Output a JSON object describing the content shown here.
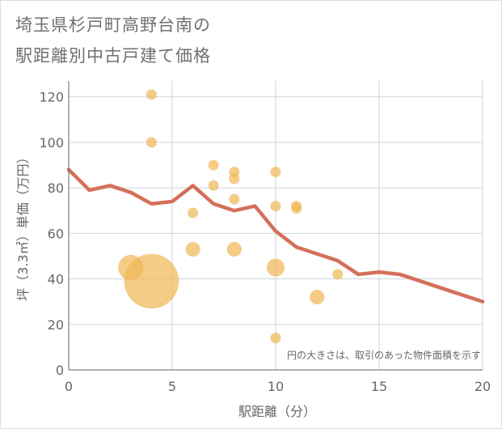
{
  "title_lines": [
    "埼玉県杉戸町高野台南の",
    "駅距離別中古戸建て価格"
  ],
  "chart_data": {
    "type": "scatter",
    "title": "埼玉県杉戸町高野台南の駅距離別中古戸建て価格",
    "xlabel": "駅距離（分）",
    "ylabel": "坪（3.3㎡）単価（万円）",
    "xlim": [
      0,
      20
    ],
    "ylim": [
      0,
      127
    ],
    "x_ticks": [
      0,
      5,
      10,
      15,
      20
    ],
    "y_ticks": [
      0,
      20,
      40,
      60,
      80,
      100,
      120
    ],
    "grid": true,
    "note": "円の大きさは、取引のあった物件面積を示す",
    "colors": {
      "bubble": "#f0b858",
      "line": "#d4705a",
      "grid": "#ccd6dd",
      "axis": "#666666"
    },
    "bubbles": [
      {
        "x": 3,
        "y": 45,
        "size": 2.4
      },
      {
        "x": 4,
        "y": 121,
        "size": 1
      },
      {
        "x": 4,
        "y": 100,
        "size": 1
      },
      {
        "x": 4,
        "y": 39,
        "size": 5.2
      },
      {
        "x": 6,
        "y": 69,
        "size": 1
      },
      {
        "x": 6,
        "y": 53,
        "size": 1.4
      },
      {
        "x": 7,
        "y": 90,
        "size": 1
      },
      {
        "x": 7,
        "y": 81,
        "size": 1
      },
      {
        "x": 8,
        "y": 87,
        "size": 1
      },
      {
        "x": 8,
        "y": 84,
        "size": 1
      },
      {
        "x": 8,
        "y": 75,
        "size": 1
      },
      {
        "x": 8,
        "y": 53,
        "size": 1.4
      },
      {
        "x": 10,
        "y": 87,
        "size": 1
      },
      {
        "x": 10,
        "y": 72,
        "size": 1
      },
      {
        "x": 10,
        "y": 45,
        "size": 1.7
      },
      {
        "x": 10,
        "y": 14,
        "size": 1
      },
      {
        "x": 11,
        "y": 72,
        "size": 1
      },
      {
        "x": 11,
        "y": 71,
        "size": 1
      },
      {
        "x": 12,
        "y": 32,
        "size": 1.4
      },
      {
        "x": 13,
        "y": 42,
        "size": 1
      }
    ],
    "trend": {
      "x": [
        0,
        1,
        2,
        3,
        4,
        5,
        6,
        7,
        8,
        9,
        10,
        11,
        12,
        13,
        14,
        15,
        16,
        17,
        18,
        19,
        20
      ],
      "y": [
        88,
        79,
        81,
        78,
        73,
        74,
        81,
        73,
        70,
        72,
        61,
        54,
        51,
        48,
        42,
        43,
        42,
        39,
        36,
        33,
        30
      ]
    }
  }
}
